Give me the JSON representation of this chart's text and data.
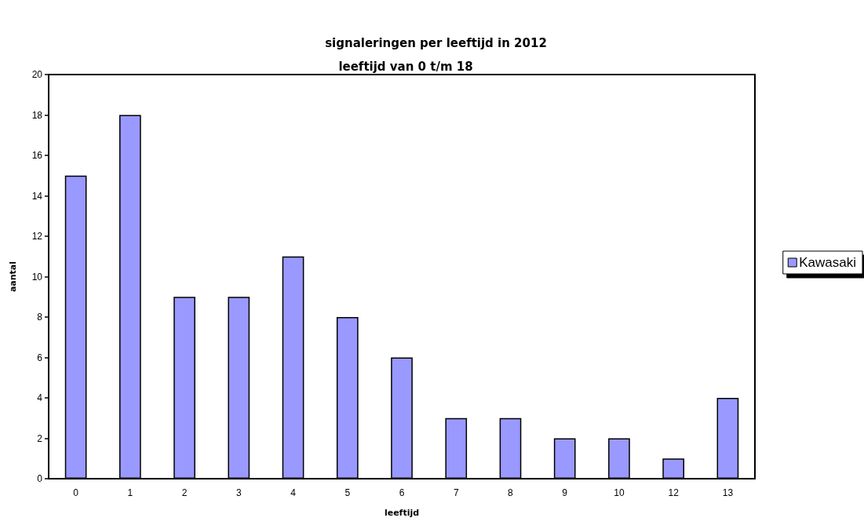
{
  "chart_data": {
    "type": "bar",
    "title": "signaleringen per leeftijd in 2012",
    "subtitle": "leeftijd van 0 t/m 18",
    "xlabel": "leeftijd",
    "ylabel": "aantal",
    "categories": [
      "0",
      "1",
      "2",
      "3",
      "4",
      "5",
      "6",
      "7",
      "8",
      "9",
      "10",
      "12",
      "13"
    ],
    "series": [
      {
        "name": "Kawasaki",
        "color": "#9999ff",
        "values": [
          15,
          18,
          9,
          9,
          11,
          8,
          6,
          3,
          3,
          2,
          2,
          1,
          4
        ]
      }
    ],
    "ylim": [
      0,
      20
    ],
    "yticks": [
      0,
      2,
      4,
      6,
      8,
      10,
      12,
      14,
      16,
      18,
      20
    ],
    "legend": "right"
  }
}
